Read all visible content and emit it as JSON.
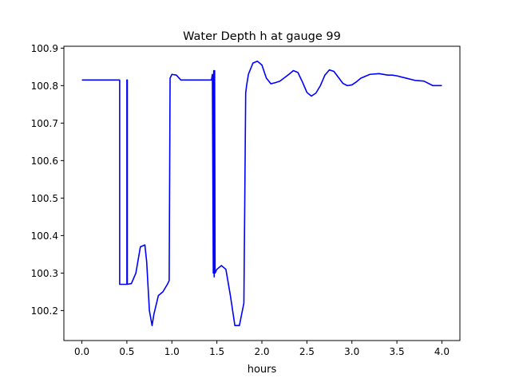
{
  "chart_data": {
    "type": "line",
    "title": "Water Depth h at gauge 99",
    "xlabel": "hours",
    "ylabel": "",
    "xlim": [
      -0.2,
      4.2
    ],
    "ylim": [
      100.12,
      100.905
    ],
    "xticks": [
      0.0,
      0.5,
      1.0,
      1.5,
      2.0,
      2.5,
      3.0,
      3.5,
      4.0
    ],
    "xtick_labels": [
      "0.0",
      "0.5",
      "1.0",
      "1.5",
      "2.0",
      "2.5",
      "3.0",
      "3.5",
      "4.0"
    ],
    "yticks": [
      100.2,
      100.3,
      100.4,
      100.5,
      100.6,
      100.7,
      100.8,
      100.9
    ],
    "ytick_labels": [
      "100.2",
      "100.3",
      "100.4",
      "100.5",
      "100.6",
      "100.7",
      "100.8",
      "100.9"
    ],
    "grid": false,
    "series": [
      {
        "color": "#0000ff",
        "x": [
          0.0,
          0.42,
          0.42,
          0.5,
          0.5,
          0.505,
          0.505,
          0.55,
          0.6,
          0.65,
          0.7,
          0.72,
          0.75,
          0.78,
          0.8,
          0.85,
          0.9,
          0.95,
          0.97,
          0.98,
          0.99,
          1.0,
          1.05,
          1.1,
          1.2,
          1.3,
          1.4,
          1.44,
          1.45,
          1.46,
          1.465,
          1.47,
          1.475,
          1.48,
          1.49,
          1.5,
          1.55,
          1.6,
          1.65,
          1.7,
          1.75,
          1.8,
          1.82,
          1.83,
          1.85,
          1.9,
          1.95,
          2.0,
          2.05,
          2.1,
          2.15,
          2.2,
          2.3,
          2.35,
          2.4,
          2.45,
          2.5,
          2.55,
          2.6,
          2.65,
          2.7,
          2.75,
          2.8,
          2.85,
          2.9,
          2.95,
          3.0,
          3.05,
          3.1,
          3.2,
          3.3,
          3.4,
          3.45,
          3.5,
          3.6,
          3.7,
          3.8,
          3.9,
          4.0
        ],
        "y": [
          100.815,
          100.815,
          100.27,
          100.27,
          100.815,
          100.815,
          100.27,
          100.272,
          100.3,
          100.37,
          100.375,
          100.33,
          100.2,
          100.16,
          100.19,
          100.24,
          100.25,
          100.27,
          100.28,
          100.82,
          100.825,
          100.83,
          100.828,
          100.815,
          100.815,
          100.815,
          100.815,
          100.815,
          100.83,
          100.3,
          100.84,
          100.29,
          100.84,
          100.3,
          100.305,
          100.31,
          100.32,
          100.31,
          100.24,
          100.16,
          100.16,
          100.22,
          100.78,
          100.8,
          100.83,
          100.86,
          100.865,
          100.855,
          100.82,
          100.805,
          100.808,
          100.812,
          100.83,
          100.84,
          100.835,
          100.81,
          100.782,
          100.772,
          100.78,
          100.8,
          100.828,
          100.842,
          100.838,
          100.822,
          100.806,
          100.8,
          100.802,
          100.81,
          100.82,
          100.83,
          100.832,
          100.828,
          100.828,
          100.826,
          100.82,
          100.814,
          100.812,
          100.8,
          100.8
        ]
      }
    ]
  }
}
